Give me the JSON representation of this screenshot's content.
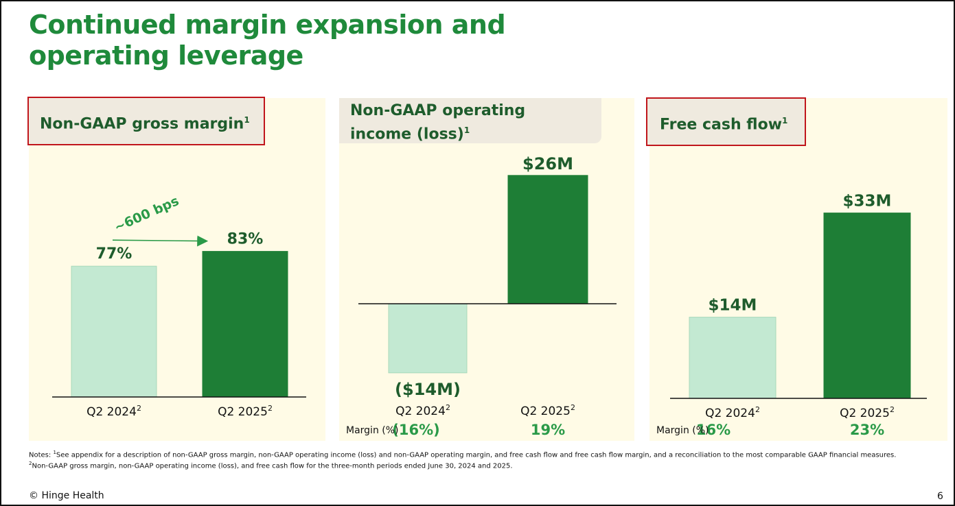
{
  "title_line1": "Continued margin expansion and",
  "title_line2": "operating leverage",
  "colors": {
    "light_bar": "#c3e9d2",
    "dark_bar": "#1e7e36",
    "accent_green": "#2a9a48",
    "title_green": "#1f8a3b"
  },
  "panels": [
    {
      "heading": "Non-GAAP gross margin",
      "sup": "1"
    },
    {
      "heading_line1": "Non-GAAP operating",
      "heading_line2": "income (loss)",
      "sup": "1"
    },
    {
      "heading": "Free cash flow",
      "sup": "1"
    }
  ],
  "chart_data": [
    {
      "type": "bar",
      "title": "Non-GAAP gross margin",
      "categories": [
        "Q2 2024",
        "Q2 2025"
      ],
      "category_sup": [
        "2",
        "2"
      ],
      "values": [
        77,
        83
      ],
      "data_labels": [
        "77%",
        "83%"
      ],
      "annotation": "~600 bps"
    },
    {
      "type": "bar",
      "title": "Non-GAAP operating income (loss)",
      "categories": [
        "Q2 2024",
        "Q2 2025"
      ],
      "category_sup": [
        "2",
        "2"
      ],
      "values": [
        -14,
        26
      ],
      "data_labels": [
        "($14M)",
        "$26M"
      ],
      "margin_label": "Margin (%)",
      "margins": [
        "(16%)",
        "19%"
      ]
    },
    {
      "type": "bar",
      "title": "Free cash flow",
      "categories": [
        "Q2 2024",
        "Q2 2025"
      ],
      "category_sup": [
        "2",
        "2"
      ],
      "values": [
        14,
        33
      ],
      "data_labels": [
        "$14M",
        "$33M"
      ],
      "margin_label": "Margin (%)",
      "margins": [
        "16%",
        "23%"
      ]
    }
  ],
  "notes_sup1": "1",
  "notes_line1": "See appendix for a description of non-GAAP gross margin, non-GAAP operating income (loss) and non-GAAP operating margin, and free cash flow and free cash flow margin, and a reconciliation to the most comparable GAAP financial measures.",
  "notes_prefix": "Notes: ",
  "notes_sup2": "2",
  "notes_line2": "Non-GAAP gross margin, non-GAAP operating income (loss), and free cash flow for the three-month periods ended June 30, 2024 and 2025.",
  "footer": "© Hinge Health",
  "page_number": "6"
}
